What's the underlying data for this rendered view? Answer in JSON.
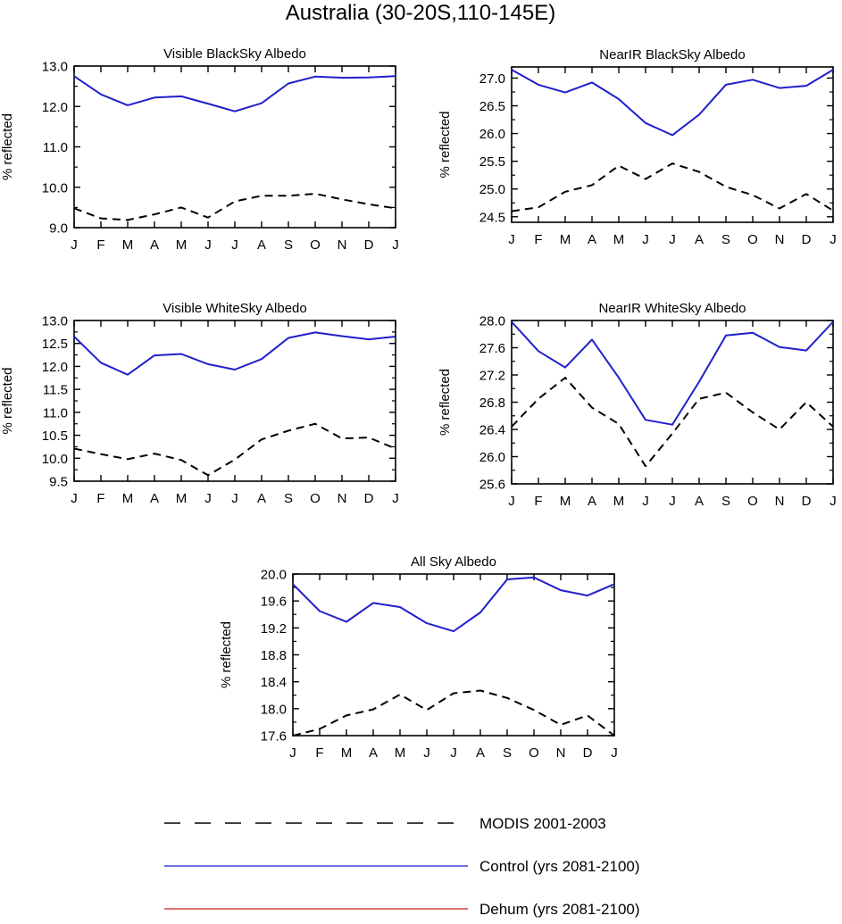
{
  "figure": {
    "title": "Australia (30-20S,110-145E)"
  },
  "legend": {
    "placement": "bottom-center",
    "entries": [
      {
        "label": "MODIS 2001-2003",
        "color": "#000000",
        "dash": true
      },
      {
        "label": "Control (yrs 2081-2100)",
        "color": "#1f1fcc",
        "dash": false
      },
      {
        "label": "Dehum (yrs 2081-2100)",
        "color": "#cc1f1f",
        "dash": false
      }
    ]
  },
  "chart_data": [
    {
      "type": "line",
      "title": "Visible BlackSky Albedo",
      "ylabel": "% reflected",
      "categories": [
        "J",
        "F",
        "M",
        "A",
        "M",
        "J",
        "J",
        "A",
        "S",
        "O",
        "N",
        "D",
        "J"
      ],
      "ylim": [
        9.0,
        13.0
      ],
      "yticks": [
        "9.0",
        "10.0",
        "11.0",
        "12.0",
        "13.0"
      ],
      "series": [
        {
          "values": [
            9.48,
            9.23,
            9.19,
            9.33,
            9.5,
            9.25,
            9.65,
            9.79,
            9.79,
            9.84,
            9.7,
            9.58,
            9.48
          ]
        },
        {
          "values": [
            12.75,
            12.3,
            12.03,
            12.22,
            12.25,
            12.07,
            11.88,
            12.08,
            12.57,
            12.74,
            12.71,
            12.72,
            12.75
          ]
        }
      ]
    },
    {
      "type": "line",
      "title": "NearIR BlackSky Albedo",
      "ylabel": "% reflected",
      "categories": [
        "J",
        "F",
        "M",
        "A",
        "M",
        "J",
        "J",
        "A",
        "S",
        "O",
        "N",
        "D",
        "J"
      ],
      "ylim": [
        24.4,
        27.2
      ],
      "yticks": [
        "24.5",
        "25.0",
        "25.5",
        "26.0",
        "26.5",
        "27.0"
      ],
      "series": [
        {
          "values": [
            24.6,
            24.67,
            24.95,
            25.07,
            25.42,
            25.18,
            25.46,
            25.31,
            25.04,
            24.89,
            24.65,
            24.91,
            24.61
          ]
        },
        {
          "values": [
            27.15,
            26.88,
            26.74,
            26.92,
            26.62,
            26.19,
            25.97,
            26.34,
            26.88,
            26.97,
            26.82,
            26.86,
            27.15
          ]
        }
      ]
    },
    {
      "type": "line",
      "title": "Visible WhiteSky Albedo",
      "ylabel": "% reflected",
      "categories": [
        "J",
        "F",
        "M",
        "A",
        "M",
        "J",
        "J",
        "A",
        "S",
        "O",
        "N",
        "D",
        "J"
      ],
      "ylim": [
        9.5,
        13.0
      ],
      "yticks": [
        "9.5",
        "10.0",
        "10.5",
        "11.0",
        "11.5",
        "12.0",
        "12.5",
        "13.0"
      ],
      "series": [
        {
          "values": [
            10.21,
            10.09,
            9.98,
            10.1,
            9.96,
            9.63,
            9.97,
            10.41,
            10.6,
            10.75,
            10.43,
            10.45,
            10.21
          ]
        },
        {
          "values": [
            12.65,
            12.08,
            11.82,
            12.24,
            12.27,
            12.05,
            11.93,
            12.16,
            12.62,
            12.74,
            12.66,
            12.59,
            12.65
          ]
        }
      ]
    },
    {
      "type": "line",
      "title": "NearIR WhiteSky Albedo",
      "ylabel": "% reflected",
      "categories": [
        "J",
        "F",
        "M",
        "A",
        "M",
        "J",
        "J",
        "A",
        "S",
        "O",
        "N",
        "D",
        "J"
      ],
      "ylim": [
        25.6,
        28.0
      ],
      "yticks": [
        "25.6",
        "26.0",
        "26.4",
        "26.8",
        "27.2",
        "27.6",
        "28.0"
      ],
      "series": [
        {
          "values": [
            26.44,
            26.85,
            27.16,
            26.72,
            26.48,
            25.86,
            26.34,
            26.85,
            26.94,
            26.65,
            26.4,
            26.8,
            26.44
          ]
        },
        {
          "values": [
            27.98,
            27.55,
            27.31,
            27.72,
            27.16,
            26.54,
            26.47,
            27.1,
            27.78,
            27.82,
            27.61,
            27.56,
            27.98
          ]
        }
      ]
    },
    {
      "type": "line",
      "title": "All Sky Albedo",
      "ylabel": "% reflected",
      "categories": [
        "J",
        "F",
        "M",
        "A",
        "M",
        "J",
        "J",
        "A",
        "S",
        "O",
        "N",
        "D",
        "J"
      ],
      "ylim": [
        17.6,
        20.0
      ],
      "yticks": [
        "17.6",
        "18.0",
        "18.4",
        "18.8",
        "19.2",
        "19.6",
        "20.0"
      ],
      "series": [
        {
          "values": [
            17.6,
            17.7,
            17.9,
            17.99,
            18.21,
            17.98,
            18.23,
            18.27,
            18.16,
            17.98,
            17.76,
            17.9,
            17.6
          ]
        },
        {
          "values": [
            19.85,
            19.45,
            19.29,
            19.57,
            19.51,
            19.27,
            19.15,
            19.43,
            19.92,
            19.95,
            19.76,
            19.68,
            19.85
          ]
        }
      ]
    }
  ]
}
